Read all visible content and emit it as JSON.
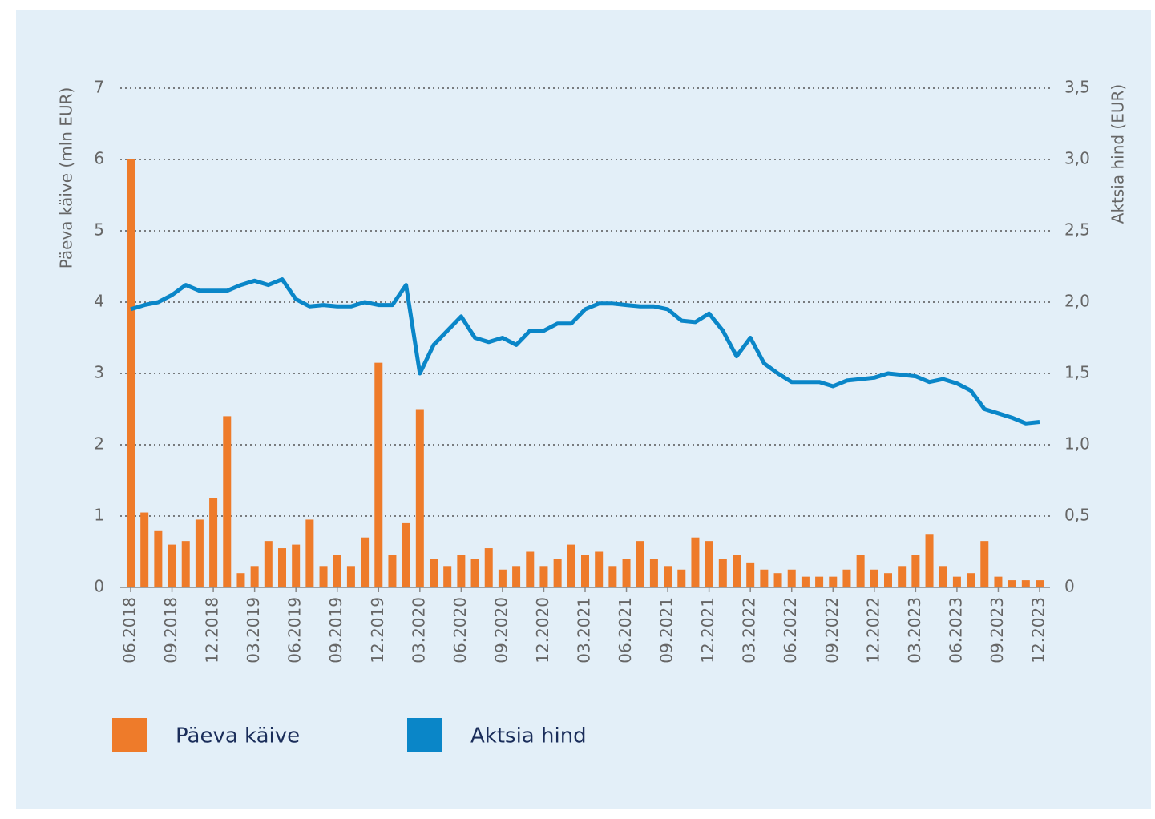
{
  "chart_data": {
    "type": "bar-line",
    "y_label": "Päeva käive (mln EUR)",
    "y2_label": "Aktsia hind (EUR)",
    "categories": [
      "06.2018",
      null,
      null,
      "09.2018",
      null,
      null,
      "12.2018",
      null,
      null,
      "03.2019",
      null,
      null,
      "06.2019",
      null,
      null,
      "09.2019",
      null,
      null,
      "12.2019",
      null,
      null,
      "03.2020",
      null,
      null,
      "06.2020",
      null,
      null,
      "09.2020",
      null,
      null,
      "12.2020",
      null,
      null,
      "03.2021",
      null,
      null,
      "06.2021",
      null,
      null,
      "09.2021",
      null,
      null,
      "12.2021",
      null,
      null,
      "03.2022",
      null,
      null,
      "06.2022",
      null,
      null,
      "09.2022",
      null,
      null,
      "12.2022",
      null,
      null,
      "03.2023",
      null,
      null,
      "06.2023",
      null,
      null,
      "09.2023",
      null,
      null,
      "12.2023"
    ],
    "series": [
      {
        "name": "Päeva käive",
        "color": "#ee7b2a",
        "kind": "bar",
        "axis": "y",
        "values": [
          6.0,
          1.05,
          0.8,
          0.6,
          0.65,
          0.95,
          1.25,
          2.4,
          0.2,
          0.3,
          0.65,
          0.55,
          0.6,
          0.95,
          0.3,
          0.45,
          0.3,
          0.7,
          3.15,
          0.45,
          0.9,
          2.5,
          0.4,
          0.3,
          0.45,
          0.4,
          0.55,
          0.25,
          0.3,
          0.5,
          0.3,
          0.4,
          0.6,
          0.45,
          0.5,
          0.3,
          0.4,
          0.65,
          0.4,
          0.3,
          0.25,
          0.7,
          0.65,
          0.4,
          0.45,
          0.35,
          0.25,
          0.2,
          0.25,
          0.15,
          0.15,
          0.15,
          0.25,
          0.45,
          0.25,
          0.2,
          0.3,
          0.45,
          0.75,
          0.3,
          0.15,
          0.2,
          0.65,
          0.15,
          0.1,
          0.1,
          0.1
        ]
      },
      {
        "name": "Aktsia hind",
        "color": "#0a86c8",
        "kind": "line",
        "axis": "y2",
        "values": [
          1.95,
          1.98,
          2.0,
          2.05,
          2.12,
          2.08,
          2.08,
          2.08,
          2.12,
          2.15,
          2.12,
          2.16,
          2.02,
          1.97,
          1.98,
          1.97,
          1.97,
          2.0,
          1.98,
          1.98,
          2.12,
          1.5,
          1.7,
          1.8,
          1.9,
          1.75,
          1.72,
          1.75,
          1.7,
          1.8,
          1.8,
          1.85,
          1.85,
          1.95,
          1.99,
          1.99,
          1.98,
          1.97,
          1.97,
          1.95,
          1.87,
          1.86,
          1.92,
          1.8,
          1.62,
          1.75,
          1.57,
          1.5,
          1.44,
          1.44,
          1.44,
          1.41,
          1.45,
          1.46,
          1.47,
          1.5,
          1.49,
          1.48,
          1.44,
          1.46,
          1.43,
          1.38,
          1.25,
          1.22,
          1.19,
          1.15,
          1.16
        ]
      }
    ],
    "ylim": [
      0,
      7
    ],
    "yticks": [
      0,
      1,
      2,
      3,
      4,
      5,
      6,
      7
    ],
    "y2lim": [
      0,
      3.5
    ],
    "y2ticks": [
      0,
      {
        "value": 0.5,
        "label": "0,5"
      },
      {
        "value": 1.0,
        "label": "1,0"
      },
      {
        "value": 1.5,
        "label": "1,5"
      },
      {
        "value": 2.0,
        "label": "2,0"
      },
      {
        "value": 2.5,
        "label": "2,5"
      },
      {
        "value": 3.0,
        "label": "3,0"
      },
      {
        "value": 3.5,
        "label": "3,5"
      }
    ],
    "grid": true
  }
}
